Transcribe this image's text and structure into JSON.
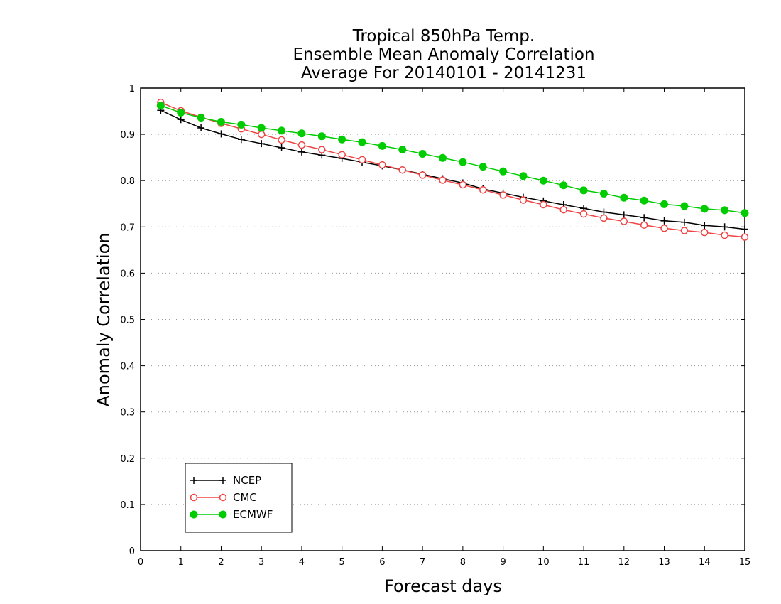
{
  "chart_data": {
    "type": "line",
    "title_lines": [
      "Tropical 850hPa Temp.",
      "Ensemble Mean Anomaly Correlation",
      "Average For 20140101 - 20141231"
    ],
    "xlabel": "Forecast days",
    "ylabel": "Anomaly Correlation",
    "xlim": [
      0,
      15
    ],
    "ylim": [
      0,
      1
    ],
    "xticks": [
      "0",
      "1",
      "2",
      "3",
      "4",
      "5",
      "6",
      "7",
      "8",
      "9",
      "10",
      "11",
      "12",
      "13",
      "14",
      "15"
    ],
    "yticks": [
      "0",
      "0.1",
      "0.2",
      "0.3",
      "0.4",
      "0.5",
      "0.6",
      "0.7",
      "0.8",
      "0.9",
      "1"
    ],
    "grid": "horizontal-dotted",
    "legend_position": "bottom-left",
    "x": [
      0.5,
      1,
      1.5,
      2,
      2.5,
      3,
      3.5,
      4,
      4.5,
      5,
      5.5,
      6,
      6.5,
      7,
      7.5,
      8,
      8.5,
      9,
      9.5,
      10,
      10.5,
      11,
      11.5,
      12,
      12.5,
      13,
      13.5,
      14,
      14.5,
      15
    ],
    "series": [
      {
        "name": "NCEP",
        "color": "#000000",
        "marker": "plus",
        "values": [
          0.952,
          0.932,
          0.914,
          0.901,
          0.889,
          0.88,
          0.871,
          0.862,
          0.855,
          0.848,
          0.84,
          0.832,
          0.823,
          0.814,
          0.804,
          0.795,
          0.782,
          0.773,
          0.764,
          0.756,
          0.748,
          0.74,
          0.732,
          0.726,
          0.72,
          0.713,
          0.71,
          0.703,
          0.7,
          0.695
        ]
      },
      {
        "name": "CMC",
        "color": "#ee4444",
        "marker": "open-circle",
        "values": [
          0.969,
          0.951,
          0.937,
          0.924,
          0.912,
          0.9,
          0.888,
          0.877,
          0.867,
          0.856,
          0.845,
          0.834,
          0.823,
          0.812,
          0.801,
          0.791,
          0.78,
          0.769,
          0.758,
          0.748,
          0.737,
          0.728,
          0.719,
          0.712,
          0.704,
          0.697,
          0.692,
          0.688,
          0.682,
          0.678
        ]
      },
      {
        "name": "ECMWF",
        "color": "#00cc00",
        "marker": "filled-circle",
        "values": [
          0.962,
          0.947,
          0.936,
          0.927,
          0.921,
          0.914,
          0.908,
          0.902,
          0.896,
          0.889,
          0.883,
          0.875,
          0.867,
          0.858,
          0.849,
          0.84,
          0.83,
          0.82,
          0.81,
          0.8,
          0.79,
          0.779,
          0.772,
          0.763,
          0.757,
          0.749,
          0.745,
          0.739,
          0.736,
          0.73
        ]
      }
    ]
  }
}
